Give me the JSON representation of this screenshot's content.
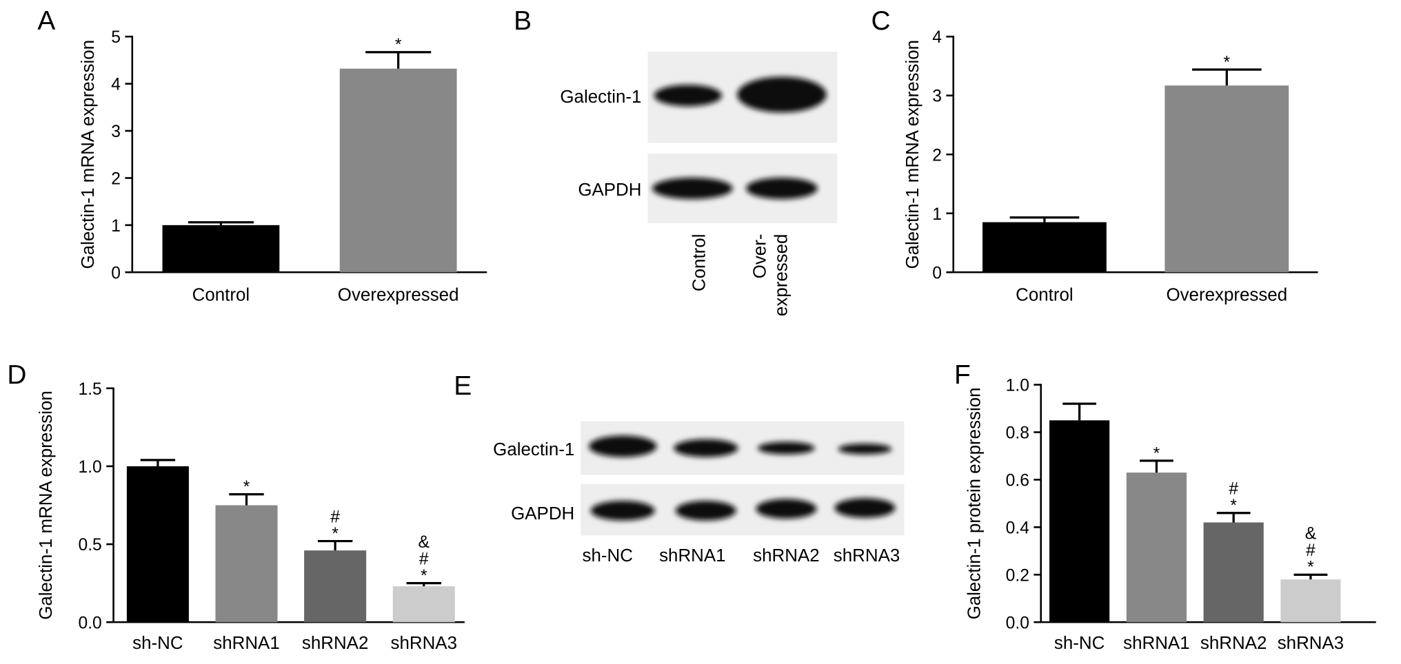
{
  "panel_labels": [
    "A",
    "B",
    "C",
    "D",
    "E",
    "F"
  ],
  "chart_data": [
    {
      "type": "bar",
      "y_label": "Galectin-1 mRNA expression",
      "categories": [
        "Control",
        "Overexpressed"
      ],
      "values": [
        1.0,
        4.32
      ],
      "errors": [
        0.06,
        0.35
      ],
      "colors": [
        "#000000",
        "#888888"
      ],
      "annotations": [
        [],
        [
          "*"
        ]
      ],
      "ylim": [
        0,
        5
      ],
      "yticks": [
        0,
        1,
        2,
        3,
        4,
        5
      ]
    },
    {
      "type": "bar",
      "y_label": "Galectin-1 mRNA expression",
      "categories": [
        "Control",
        "Overexpressed"
      ],
      "values": [
        0.85,
        3.17
      ],
      "errors": [
        0.08,
        0.27
      ],
      "colors": [
        "#000000",
        "#888888"
      ],
      "annotations": [
        [],
        [
          "*"
        ]
      ],
      "ylim": [
        0,
        4
      ],
      "yticks": [
        0,
        1,
        2,
        3,
        4
      ]
    },
    {
      "type": "bar",
      "y_label": "Galectin-1 mRNA expression",
      "categories": [
        "sh-NC",
        "shRNA1",
        "shRNA2",
        "shRNA3"
      ],
      "values": [
        1.0,
        0.75,
        0.46,
        0.23
      ],
      "errors": [
        0.04,
        0.07,
        0.06,
        0.02
      ],
      "colors": [
        "#000000",
        "#888888",
        "#666666",
        "#cccccc"
      ],
      "annotations": [
        [],
        [
          "*"
        ],
        [
          "#",
          "*"
        ],
        [
          "&",
          "#",
          "*"
        ]
      ],
      "ylim": [
        0,
        1.5
      ],
      "yticks": [
        {
          "value": 0,
          "label": "0.0"
        },
        0.5,
        {
          "value": 1,
          "label": "1.0"
        },
        1.5
      ]
    },
    {
      "type": "bar",
      "y_label": "Galectin-1 protein expression",
      "categories": [
        "sh-NC",
        "shRNA1",
        "shRNA2",
        "shRNA3"
      ],
      "values": [
        0.85,
        0.63,
        0.42,
        0.18
      ],
      "errors": [
        0.07,
        0.05,
        0.04,
        0.02
      ],
      "colors": [
        "#000000",
        "#888888",
        "#666666",
        "#cccccc"
      ],
      "annotations": [
        [],
        [
          "*"
        ],
        [
          "#",
          "*"
        ],
        [
          "&",
          "#",
          "*"
        ]
      ],
      "ylim": [
        0,
        1.0
      ],
      "yticks": [
        {
          "value": 0,
          "label": "0.0"
        },
        0.2,
        0.4,
        0.6,
        0.8,
        {
          "value": 1,
          "label": "1.0"
        }
      ]
    }
  ],
  "blots": [
    {
      "rows": [
        "Galectin-1",
        "GAPDH"
      ],
      "lanes": [
        [
          "Control"
        ],
        [
          "Over-",
          "expressed"
        ]
      ]
    },
    {
      "rows": [
        "Galectin-1",
        "GAPDH"
      ],
      "lanes": [
        [
          "sh-NC"
        ],
        [
          "shRNA1"
        ],
        [
          "shRNA2"
        ],
        [
          "shRNA3"
        ]
      ]
    }
  ]
}
